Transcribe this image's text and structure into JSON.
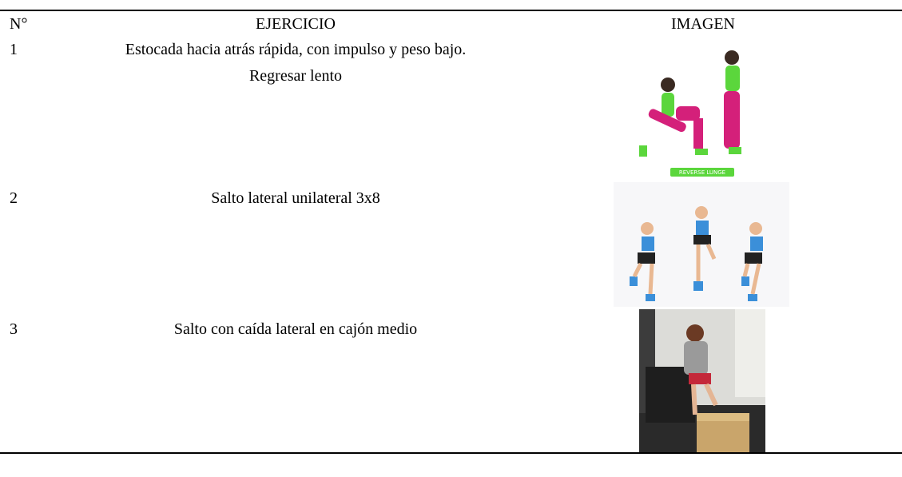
{
  "table": {
    "header": [
      "N°",
      "EJERCICIO",
      "IMAGEN"
    ],
    "rows": [
      {
        "number": "1",
        "exercise": "Estocada hacia atrás rápida, con impulso y peso bajo. Regresar lento",
        "image_label": "REVERSE LUNGE"
      },
      {
        "number": "2",
        "exercise": "Salto lateral unilateral 3x8"
      },
      {
        "number": "3",
        "exercise": "Salto con caída lateral en cajón medio"
      }
    ]
  }
}
